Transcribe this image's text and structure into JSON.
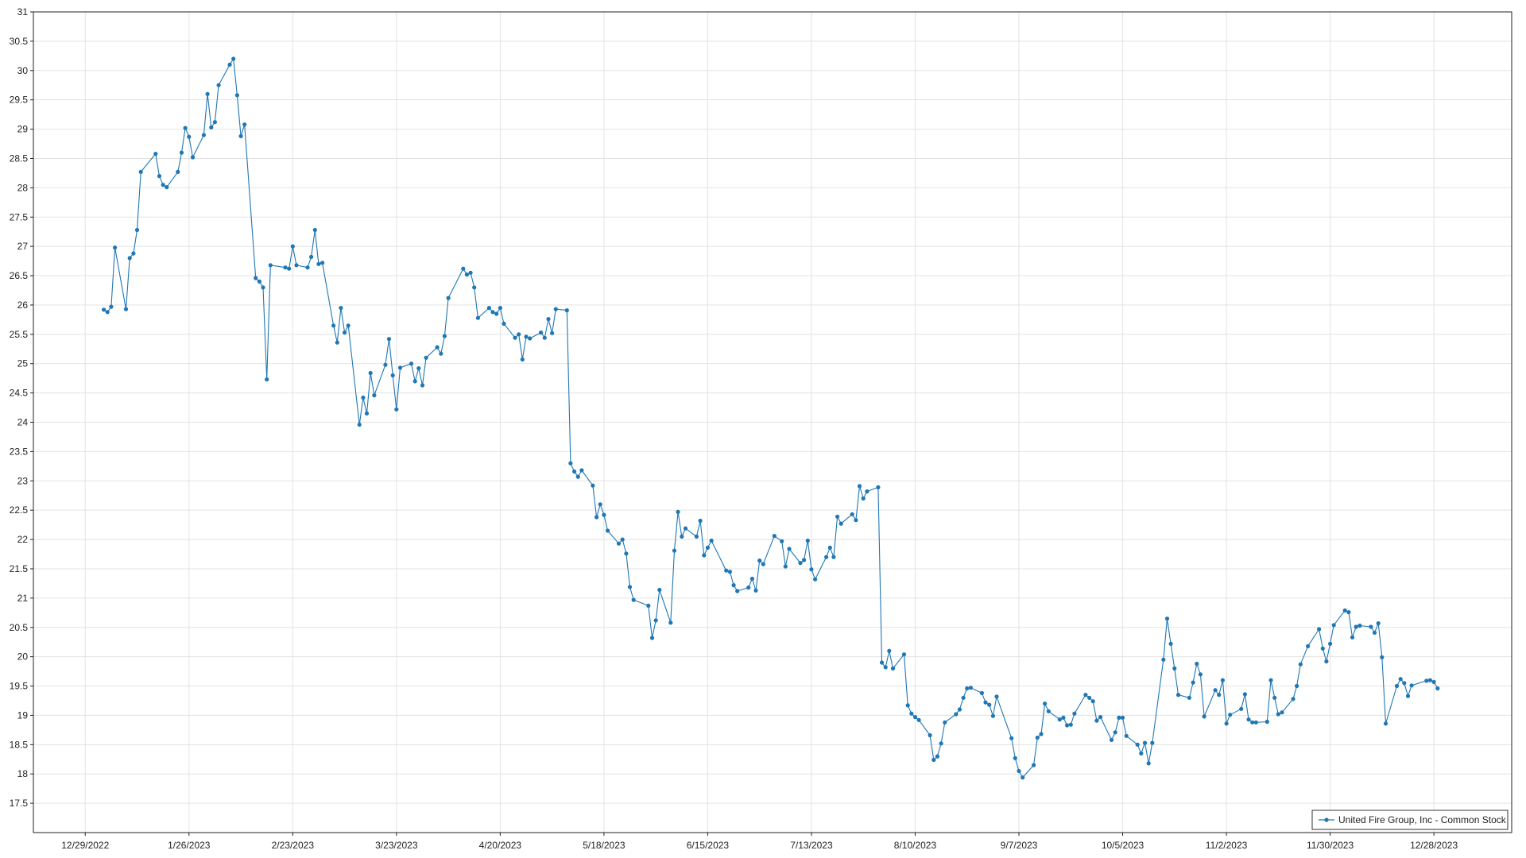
{
  "chart_data": {
    "type": "line",
    "title": "",
    "xlabel": "",
    "ylabel": "",
    "x_ticks": [
      "12/29/2022",
      "1/26/2023",
      "2/23/2023",
      "3/23/2023",
      "4/20/2023",
      "5/18/2023",
      "6/15/2023",
      "7/13/2023",
      "8/10/2023",
      "9/7/2023",
      "10/5/2023",
      "11/2/2023",
      "11/30/2023",
      "12/28/2023"
    ],
    "xlim": [
      "2022-12-15",
      "2024-01-18"
    ],
    "ylim": [
      17,
      31
    ],
    "y_ticks": [
      17.5,
      18,
      18.5,
      19,
      19.5,
      20,
      20.5,
      21,
      21.5,
      22,
      22.5,
      23,
      23.5,
      24,
      24.5,
      25,
      25.5,
      26,
      26.5,
      27,
      27.5,
      28,
      28.5,
      29,
      29.5,
      30,
      30.5,
      31
    ],
    "grid": true,
    "legend_position": "bottom-right",
    "line_color": "#1f77b4",
    "series": [
      {
        "name": "United Fire Group, Inc - Common Stock",
        "x": [
          "2023-01-03",
          "2023-01-04",
          "2023-01-05",
          "2023-01-06",
          "2023-01-09",
          "2023-01-10",
          "2023-01-11",
          "2023-01-12",
          "2023-01-13",
          "2023-01-17",
          "2023-01-18",
          "2023-01-19",
          "2023-01-20",
          "2023-01-23",
          "2023-01-24",
          "2023-01-25",
          "2023-01-26",
          "2023-01-27",
          "2023-01-30",
          "2023-01-31",
          "2023-02-01",
          "2023-02-02",
          "2023-02-03",
          "2023-02-06",
          "2023-02-07",
          "2023-02-08",
          "2023-02-09",
          "2023-02-10",
          "2023-02-13",
          "2023-02-14",
          "2023-02-15",
          "2023-02-16",
          "2023-02-17",
          "2023-02-21",
          "2023-02-22",
          "2023-02-23",
          "2023-02-24",
          "2023-02-27",
          "2023-02-28",
          "2023-03-01",
          "2023-03-02",
          "2023-03-03",
          "2023-03-06",
          "2023-03-07",
          "2023-03-08",
          "2023-03-09",
          "2023-03-10",
          "2023-03-13",
          "2023-03-14",
          "2023-03-15",
          "2023-03-16",
          "2023-03-17",
          "2023-03-20",
          "2023-03-21",
          "2023-03-22",
          "2023-03-23",
          "2023-03-24",
          "2023-03-27",
          "2023-03-28",
          "2023-03-29",
          "2023-03-30",
          "2023-03-31",
          "2023-04-03",
          "2023-04-04",
          "2023-04-05",
          "2023-04-06",
          "2023-04-10",
          "2023-04-11",
          "2023-04-12",
          "2023-04-13",
          "2023-04-14",
          "2023-04-17",
          "2023-04-18",
          "2023-04-19",
          "2023-04-20",
          "2023-04-21",
          "2023-04-24",
          "2023-04-25",
          "2023-04-26",
          "2023-04-27",
          "2023-04-28",
          "2023-05-01",
          "2023-05-02",
          "2023-05-03",
          "2023-05-04",
          "2023-05-05",
          "2023-05-08",
          "2023-05-09",
          "2023-05-10",
          "2023-05-11",
          "2023-05-12",
          "2023-05-15",
          "2023-05-16",
          "2023-05-17",
          "2023-05-18",
          "2023-05-19",
          "2023-05-22",
          "2023-05-23",
          "2023-05-24",
          "2023-05-25",
          "2023-05-26",
          "2023-05-30",
          "2023-05-31",
          "2023-06-01",
          "2023-06-02",
          "2023-06-05",
          "2023-06-06",
          "2023-06-07",
          "2023-06-08",
          "2023-06-09",
          "2023-06-12",
          "2023-06-13",
          "2023-06-14",
          "2023-06-15",
          "2023-06-16",
          "2023-06-20",
          "2023-06-21",
          "2023-06-22",
          "2023-06-23",
          "2023-06-26",
          "2023-06-27",
          "2023-06-28",
          "2023-06-29",
          "2023-06-30",
          "2023-07-03",
          "2023-07-05",
          "2023-07-06",
          "2023-07-07",
          "2023-07-10",
          "2023-07-11",
          "2023-07-12",
          "2023-07-13",
          "2023-07-14",
          "2023-07-17",
          "2023-07-18",
          "2023-07-19",
          "2023-07-20",
          "2023-07-21",
          "2023-07-24",
          "2023-07-25",
          "2023-07-26",
          "2023-07-27",
          "2023-07-28",
          "2023-07-31",
          "2023-08-01",
          "2023-08-02",
          "2023-08-03",
          "2023-08-04",
          "2023-08-07",
          "2023-08-08",
          "2023-08-09",
          "2023-08-10",
          "2023-08-11",
          "2023-08-14",
          "2023-08-15",
          "2023-08-16",
          "2023-08-17",
          "2023-08-18",
          "2023-08-21",
          "2023-08-22",
          "2023-08-23",
          "2023-08-24",
          "2023-08-25",
          "2023-08-28",
          "2023-08-29",
          "2023-08-30",
          "2023-08-31",
          "2023-09-01",
          "2023-09-05",
          "2023-09-06",
          "2023-09-07",
          "2023-09-08",
          "2023-09-11",
          "2023-09-12",
          "2023-09-13",
          "2023-09-14",
          "2023-09-15",
          "2023-09-18",
          "2023-09-19",
          "2023-09-20",
          "2023-09-21",
          "2023-09-22",
          "2023-09-25",
          "2023-09-26",
          "2023-09-27",
          "2023-09-28",
          "2023-09-29",
          "2023-10-02",
          "2023-10-03",
          "2023-10-04",
          "2023-10-05",
          "2023-10-06",
          "2023-10-09",
          "2023-10-10",
          "2023-10-11",
          "2023-10-12",
          "2023-10-13",
          "2023-10-16",
          "2023-10-17",
          "2023-10-18",
          "2023-10-19",
          "2023-10-20",
          "2023-10-23",
          "2023-10-24",
          "2023-10-25",
          "2023-10-26",
          "2023-10-27",
          "2023-10-30",
          "2023-10-31",
          "2023-11-01",
          "2023-11-02",
          "2023-11-03",
          "2023-11-06",
          "2023-11-07",
          "2023-11-08",
          "2023-11-09",
          "2023-11-10",
          "2023-11-13",
          "2023-11-14",
          "2023-11-15",
          "2023-11-16",
          "2023-11-17",
          "2023-11-20",
          "2023-11-21",
          "2023-11-22",
          "2023-11-24",
          "2023-11-27",
          "2023-11-28",
          "2023-11-29",
          "2023-11-30",
          "2023-12-01",
          "2023-12-04",
          "2023-12-05",
          "2023-12-06",
          "2023-12-07",
          "2023-12-08",
          "2023-12-11",
          "2023-12-12",
          "2023-12-13",
          "2023-12-14",
          "2023-12-15",
          "2023-12-18",
          "2023-12-19",
          "2023-12-20",
          "2023-12-21",
          "2023-12-22",
          "2023-12-26",
          "2023-12-27",
          "2023-12-28",
          "2023-12-29"
        ],
        "values": [
          25.92,
          25.88,
          25.97,
          26.98,
          25.93,
          26.8,
          26.88,
          27.28,
          28.27,
          28.58,
          28.2,
          28.05,
          28.01,
          28.27,
          28.6,
          29.02,
          28.87,
          28.52,
          28.9,
          29.6,
          29.03,
          29.12,
          29.75,
          30.1,
          30.2,
          29.58,
          28.88,
          29.08,
          26.46,
          26.4,
          26.3,
          24.73,
          26.68,
          26.64,
          26.62,
          27.0,
          26.68,
          26.64,
          26.82,
          27.28,
          26.7,
          26.72,
          25.65,
          25.36,
          25.95,
          25.53,
          25.65,
          23.96,
          24.42,
          24.15,
          24.84,
          24.46,
          24.98,
          25.42,
          24.8,
          24.22,
          24.93,
          25.0,
          24.7,
          24.92,
          24.63,
          25.1,
          25.28,
          25.17,
          25.47,
          26.12,
          26.62,
          26.52,
          26.55,
          26.3,
          25.78,
          25.95,
          25.88,
          25.85,
          25.95,
          25.68,
          25.44,
          25.5,
          25.07,
          25.46,
          25.43,
          25.53,
          25.44,
          25.76,
          25.52,
          25.93,
          25.91,
          23.3,
          23.16,
          23.07,
          23.18,
          22.92,
          22.38,
          22.6,
          22.42,
          22.15,
          21.93,
          22.0,
          21.76,
          21.19,
          20.97,
          20.87,
          20.32,
          20.62,
          21.14,
          20.58,
          21.81,
          22.47,
          22.05,
          22.19,
          22.05,
          22.32,
          21.73,
          21.86,
          21.98,
          21.47,
          21.45,
          21.22,
          21.12,
          21.18,
          21.33,
          21.13,
          21.64,
          21.58,
          22.06,
          21.97,
          21.54,
          21.84,
          21.6,
          21.65,
          21.98,
          21.49,
          21.32,
          21.7,
          21.86,
          21.7,
          22.39,
          22.27,
          22.43,
          22.33,
          22.91,
          22.7,
          22.82,
          22.89,
          19.9,
          19.82,
          20.1,
          19.8,
          20.04,
          19.17,
          19.03,
          18.97,
          18.92,
          18.66,
          18.24,
          18.3,
          18.52,
          18.88,
          19.02,
          19.1,
          19.3,
          19.46,
          19.47,
          19.38,
          19.22,
          19.18,
          18.99,
          19.32,
          18.61,
          18.27,
          18.05,
          17.94,
          18.15,
          18.62,
          18.68,
          19.2,
          19.07,
          18.93,
          18.96,
          18.83,
          18.84,
          19.03,
          19.35,
          19.3,
          19.24,
          18.91,
          18.97,
          18.58,
          18.71,
          18.96,
          18.96,
          18.65,
          18.5,
          18.35,
          18.53,
          18.18,
          18.53,
          19.95,
          20.65,
          20.22,
          19.8,
          19.35,
          19.3,
          19.56,
          19.88,
          19.7,
          18.98,
          19.43,
          19.35,
          19.6,
          18.86,
          19.01,
          19.11,
          19.36,
          18.93,
          18.88,
          18.88,
          18.89,
          19.6,
          19.3,
          19.02,
          19.05,
          19.28,
          19.5,
          19.87,
          20.18,
          20.47,
          20.14,
          19.92,
          20.22,
          20.54,
          20.79,
          20.76,
          20.33,
          20.51,
          20.53,
          20.51,
          20.41,
          20.57,
          19.99,
          18.86,
          19.5,
          19.62,
          19.55,
          19.33,
          19.51,
          19.59,
          19.6,
          19.57,
          19.46
        ]
      }
    ]
  }
}
